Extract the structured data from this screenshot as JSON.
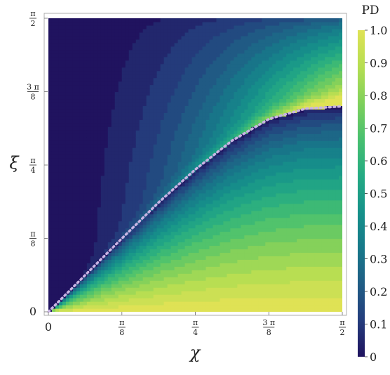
{
  "chart_data": {
    "type": "heatmap",
    "title": "",
    "xlabel": "χ",
    "ylabel": "ξ",
    "xlim": [
      0,
      1.5708
    ],
    "ylim": [
      0,
      1.5708
    ],
    "x_ticks": [
      {
        "value": 0,
        "label": "0",
        "num": "",
        "den": ""
      },
      {
        "value": 0.3927,
        "label": "π/8",
        "num": "π",
        "den": "8"
      },
      {
        "value": 0.7854,
        "label": "π/4",
        "num": "π",
        "den": "4"
      },
      {
        "value": 1.1781,
        "label": "3π/8",
        "num": "3 π",
        "den": "8"
      },
      {
        "value": 1.5708,
        "label": "π/2",
        "num": "π",
        "den": "2"
      }
    ],
    "y_ticks": [
      {
        "value": 0,
        "label": "0",
        "num": "",
        "den": ""
      },
      {
        "value": 0.3927,
        "label": "π/8",
        "num": "π",
        "den": "8"
      },
      {
        "value": 0.7854,
        "label": "π/4",
        "num": "π",
        "den": "4"
      },
      {
        "value": 1.1781,
        "label": "3π/8",
        "num": "3 π",
        "den": "8"
      },
      {
        "value": 1.5708,
        "label": "π/2",
        "num": "π",
        "den": "2"
      }
    ],
    "colorbar": {
      "title": "PD",
      "range": [
        0,
        1
      ],
      "ticks": [
        {
          "value": 0,
          "label": "0"
        },
        {
          "value": 0.1,
          "label": "0.1"
        },
        {
          "value": 0.2,
          "label": "0.2"
        },
        {
          "value": 0.3,
          "label": "0.3"
        },
        {
          "value": 0.4,
          "label": "0.4"
        },
        {
          "value": 0.5,
          "label": "0.5"
        },
        {
          "value": 0.6,
          "label": "0.6"
        },
        {
          "value": 0.7,
          "label": "0.7"
        },
        {
          "value": 0.8,
          "label": "0.8"
        },
        {
          "value": 0.9,
          "label": "0.9"
        },
        {
          "value": 1.0,
          "label": "1.0"
        }
      ],
      "colormap": [
        "#20135f",
        "#243d7d",
        "#205d85",
        "#17798a",
        "#16928a",
        "#25ab83",
        "#48c06f",
        "#7fd05b",
        "#b6de52",
        "#dfe255"
      ]
    },
    "levels": 20,
    "dotted_curve": {
      "color": "#c9b4e4",
      "points": [
        [
          0.0,
          0.0
        ],
        [
          0.1963,
          0.1963
        ],
        [
          0.3927,
          0.3927
        ],
        [
          0.589,
          0.585
        ],
        [
          0.7854,
          0.7618
        ],
        [
          0.9817,
          0.9163
        ],
        [
          1.1781,
          1.0315
        ],
        [
          1.3744,
          1.0872
        ],
        [
          1.5708,
          1.0996
        ]
      ]
    }
  }
}
